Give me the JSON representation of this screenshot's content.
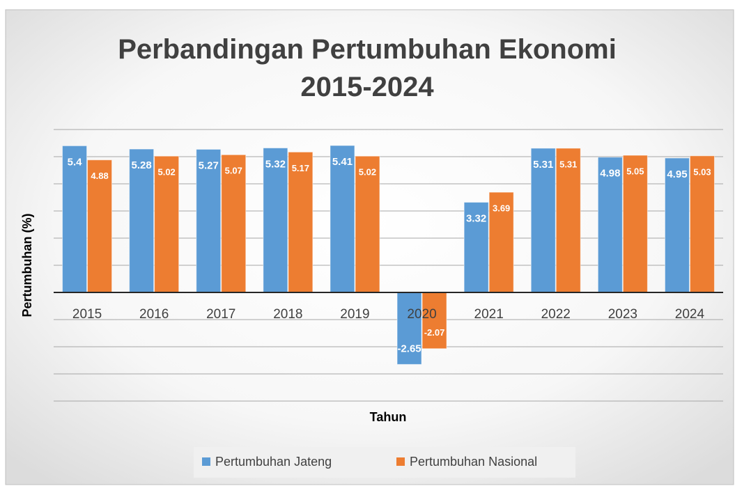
{
  "chart_data": {
    "type": "bar",
    "title": "Perbandingan Pertumbuhan Ekonomi 2015-2024",
    "x_label": "Tahun",
    "y_label": "Pertumbuhan (%)",
    "categories": [
      "2015",
      "2016",
      "2017",
      "2018",
      "2019",
      "2020",
      "2021",
      "2022",
      "2023",
      "2024"
    ],
    "series": [
      {
        "name": "Pertumbuhan Jateng",
        "color": "#5b9bd5",
        "values": [
          5.4,
          5.28,
          5.27,
          5.32,
          5.41,
          -2.65,
          3.32,
          5.31,
          4.98,
          4.95
        ]
      },
      {
        "name": "Pertumbuhan Nasional",
        "color": "#ed7d31",
        "values": [
          4.88,
          5.02,
          5.07,
          5.17,
          5.02,
          -2.07,
          3.69,
          5.31,
          5.05,
          5.03
        ]
      }
    ],
    "ylim": [
      -4,
      6
    ],
    "yticks": [
      -4,
      -3,
      -2,
      -1,
      0,
      1,
      2,
      3,
      4,
      5,
      6
    ],
    "show_ytick_labels": false,
    "grid": true,
    "legend": "bottom"
  }
}
